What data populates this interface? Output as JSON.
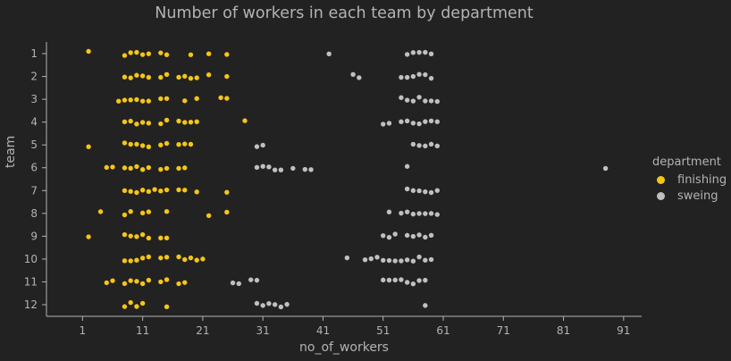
{
  "chart_data": {
    "type": "scatter",
    "title": "Number of workers in each team by department",
    "xlabel": "no_of_workers",
    "ylabel": "team",
    "xlim": [
      -5,
      94
    ],
    "x_ticks": [
      "1",
      "11",
      "21",
      "31",
      "41",
      "51",
      "61",
      "71",
      "81",
      "91"
    ],
    "categories": [
      "1",
      "2",
      "3",
      "4",
      "5",
      "6",
      "7",
      "8",
      "9",
      "10",
      "11",
      "12"
    ],
    "legend_title": "department",
    "legend_position": "right",
    "grid": false,
    "series": [
      {
        "name": "finishing",
        "color": "#f5c518",
        "points": {
          "1": [
            2,
            8,
            9,
            10,
            11,
            12,
            14,
            15,
            19,
            22,
            25
          ],
          "2": [
            8,
            9,
            10,
            11,
            12,
            14,
            15,
            17,
            18,
            19,
            20,
            22,
            25
          ],
          "3": [
            7,
            8,
            9,
            10,
            11,
            12,
            14,
            15,
            18,
            20,
            24,
            25
          ],
          "4": [
            8,
            9,
            10,
            11,
            12,
            14,
            15,
            17,
            18,
            19,
            20,
            28
          ],
          "5": [
            2,
            8,
            9,
            10,
            11,
            12,
            14,
            15,
            17,
            18,
            19
          ],
          "6": [
            5,
            6,
            8,
            9,
            10,
            11,
            12,
            14,
            15,
            17,
            18
          ],
          "7": [
            8,
            9,
            10,
            11,
            12,
            13,
            14,
            15,
            17,
            18,
            20,
            25
          ],
          "8": [
            4,
            8,
            9,
            11,
            12,
            15,
            22,
            25
          ],
          "9": [
            2,
            8,
            9,
            10,
            11,
            12,
            14,
            15
          ],
          "10": [
            8,
            9,
            10,
            11,
            12,
            14,
            15,
            17,
            18,
            19,
            20,
            21
          ],
          "11": [
            5,
            6,
            8,
            9,
            10,
            11,
            12,
            14,
            15,
            17,
            18
          ],
          "12": [
            8,
            9,
            10,
            11,
            15
          ]
        }
      },
      {
        "name": "sweing",
        "color": "#c0c0c0",
        "points": {
          "1": [
            42,
            55,
            56,
            57,
            58,
            59
          ],
          "2": [
            46,
            47,
            54,
            55,
            56,
            57,
            58,
            59
          ],
          "3": [
            54,
            55,
            56,
            57,
            58,
            59,
            60
          ],
          "4": [
            51,
            52,
            54,
            55,
            56,
            57,
            58,
            59,
            60
          ],
          "5": [
            30,
            31,
            56,
            57,
            58,
            59,
            60
          ],
          "6": [
            30,
            31,
            32,
            33,
            34,
            36,
            38,
            39,
            55,
            88
          ],
          "7": [
            55,
            56,
            57,
            58,
            59,
            60
          ],
          "8": [
            52,
            54,
            55,
            56,
            57,
            58,
            59,
            60
          ],
          "9": [
            51,
            52,
            53,
            55,
            56,
            57,
            58,
            59
          ],
          "10": [
            45,
            48,
            49,
            50,
            51,
            52,
            53,
            54,
            55,
            56,
            57,
            58,
            59
          ],
          "11": [
            26,
            27,
            29,
            30,
            51,
            52,
            53,
            54,
            55,
            56,
            57,
            58
          ],
          "12": [
            30,
            31,
            32,
            33,
            34,
            35,
            58
          ]
        }
      }
    ]
  }
}
